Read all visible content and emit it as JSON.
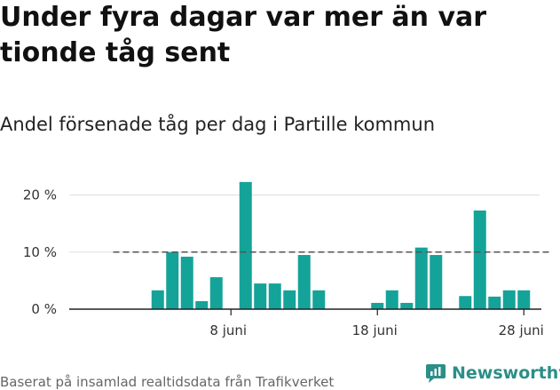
{
  "header": {
    "title": "Under fyra dagar var mer än var tionde tåg sent",
    "subtitle": "Andel försenade tåg per dag i Partille kommun"
  },
  "footer": {
    "source": "Baserat på insamlad realtidsdata från Trafikverket",
    "brand": "Newsworthy"
  },
  "colors": {
    "bar": "#14a399",
    "reference": "#555555",
    "grid": "#dddddd",
    "axis": "#222222",
    "brand": "#2b8f88"
  },
  "chart_data": {
    "type": "bar",
    "title": "Andel försenade tåg per dag i Partille kommun",
    "unit": "%",
    "ylim": [
      0,
      23
    ],
    "y_ticks": [
      {
        "value": 0,
        "label": "0 %"
      },
      {
        "value": 10,
        "label": "10 %"
      },
      {
        "value": 20,
        "label": "20 %"
      }
    ],
    "x_range": [
      0,
      30
    ],
    "x_ticks": [
      {
        "day": 8,
        "label": "8 juni"
      },
      {
        "day": 18,
        "label": "18 juni"
      },
      {
        "day": 28,
        "label": "28 juni"
      }
    ],
    "reference_line": {
      "value": 10,
      "from_day": 0.5,
      "to_day": 29.5
    },
    "days": [
      1,
      2,
      3,
      4,
      5,
      6,
      7,
      8,
      9,
      10,
      11,
      12,
      13,
      14,
      15,
      16,
      17,
      18,
      19,
      20,
      21,
      22,
      23,
      24,
      25,
      26,
      27,
      28,
      29
    ],
    "values": [
      null,
      null,
      3.3,
      10,
      9.2,
      1.4,
      5.6,
      null,
      22.3,
      4.5,
      4.5,
      3.3,
      9.5,
      3.3,
      null,
      null,
      null,
      1.1,
      3.3,
      1.1,
      10.8,
      9.5,
      null,
      2.3,
      17.3,
      2.2,
      3.3,
      3.3,
      null
    ]
  }
}
